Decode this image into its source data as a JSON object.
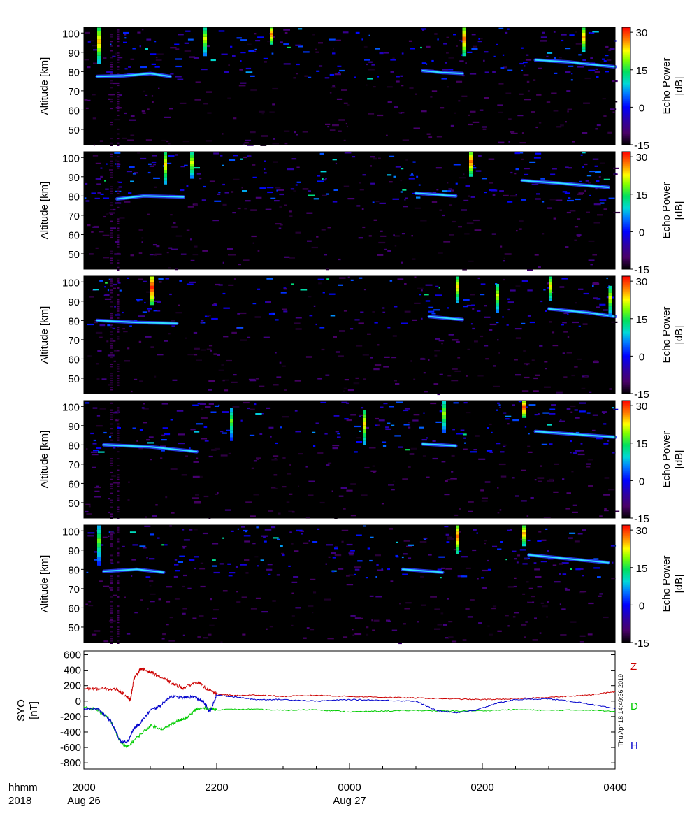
{
  "chart_data": {
    "type": "heatmap",
    "panels": [
      {
        "ylabel": "Altitude [km]",
        "cbar_label": "Echo Power",
        "cbar_unit": "[dB]"
      },
      {
        "ylabel": "Altitude [km]",
        "cbar_label": "Echo Power",
        "cbar_unit": "[dB]"
      },
      {
        "ylabel": "Altitude [km]",
        "cbar_label": "Echo Power",
        "cbar_unit": "[dB]"
      },
      {
        "ylabel": "Altitude [km]",
        "cbar_label": "Echo Power",
        "cbar_unit": "[dB]"
      },
      {
        "ylabel": "Altitude [km]",
        "cbar_label": "Echo Power",
        "cbar_unit": "[dB]"
      }
    ],
    "altitude_ticks": [
      50,
      60,
      70,
      80,
      90,
      100
    ],
    "altitude_range": [
      42,
      103
    ],
    "power_ticks": [
      -15,
      0,
      15,
      30
    ],
    "power_range": [
      -15,
      32
    ],
    "time_range_hours": [
      20,
      28
    ],
    "background": "#000000",
    "echo_layers": [
      {
        "panel": 0,
        "points": [
          [
            20.2,
            77.5
          ],
          [
            20.6,
            77.8
          ],
          [
            21.0,
            79.0
          ],
          [
            21.3,
            77.5
          ]
        ]
      },
      {
        "panel": 0,
        "points": [
          [
            25.1,
            80.5
          ],
          [
            25.4,
            79.5
          ],
          [
            25.7,
            79.0
          ]
        ]
      },
      {
        "panel": 0,
        "points": [
          [
            26.8,
            86.0
          ],
          [
            27.3,
            85.0
          ],
          [
            27.7,
            83.5
          ],
          [
            28.0,
            82.5
          ]
        ]
      },
      {
        "panel": 1,
        "points": [
          [
            20.5,
            78.5
          ],
          [
            20.9,
            80.0
          ],
          [
            21.5,
            79.5
          ]
        ]
      },
      {
        "panel": 1,
        "points": [
          [
            25.0,
            81.5
          ],
          [
            25.6,
            80.0
          ]
        ]
      },
      {
        "panel": 1,
        "points": [
          [
            26.6,
            88.0
          ],
          [
            27.2,
            86.5
          ],
          [
            27.9,
            84.5
          ]
        ]
      },
      {
        "panel": 2,
        "points": [
          [
            20.2,
            80.0
          ],
          [
            20.8,
            79.0
          ],
          [
            21.4,
            78.5
          ]
        ]
      },
      {
        "panel": 2,
        "points": [
          [
            25.2,
            82.0
          ],
          [
            25.7,
            80.5
          ]
        ]
      },
      {
        "panel": 2,
        "points": [
          [
            27.0,
            86.0
          ],
          [
            27.6,
            84.0
          ],
          [
            28.0,
            82.0
          ]
        ]
      },
      {
        "panel": 3,
        "points": [
          [
            20.3,
            80.0
          ],
          [
            21.0,
            79.0
          ],
          [
            21.7,
            76.5
          ]
        ]
      },
      {
        "panel": 3,
        "points": [
          [
            25.1,
            80.5
          ],
          [
            25.6,
            79.5
          ]
        ]
      },
      {
        "panel": 3,
        "points": [
          [
            26.8,
            87.0
          ],
          [
            27.4,
            85.5
          ],
          [
            28.0,
            84.0
          ]
        ]
      },
      {
        "panel": 4,
        "points": [
          [
            20.3,
            79.0
          ],
          [
            20.8,
            80.0
          ],
          [
            21.2,
            78.5
          ]
        ]
      },
      {
        "panel": 4,
        "points": [
          [
            24.8,
            80.0
          ],
          [
            25.4,
            78.5
          ]
        ]
      },
      {
        "panel": 4,
        "points": [
          [
            26.7,
            87.5
          ],
          [
            27.3,
            85.5
          ],
          [
            27.9,
            83.5
          ]
        ]
      }
    ],
    "echo_columns": [
      {
        "panel": 0,
        "t": 20.2,
        "alt": [
          84,
          103
        ],
        "peak_db": 25
      },
      {
        "panel": 0,
        "t": 21.8,
        "alt": [
          88,
          103
        ],
        "peak_db": 22
      },
      {
        "panel": 0,
        "t": 22.8,
        "alt": [
          94,
          103
        ],
        "peak_db": 28
      },
      {
        "panel": 0,
        "t": 25.7,
        "alt": [
          88,
          103
        ],
        "peak_db": 28
      },
      {
        "panel": 0,
        "t": 27.5,
        "alt": [
          90,
          103
        ],
        "peak_db": 26
      },
      {
        "panel": 1,
        "t": 21.2,
        "alt": [
          86,
          103
        ],
        "peak_db": 24
      },
      {
        "panel": 1,
        "t": 21.6,
        "alt": [
          89,
          103
        ],
        "peak_db": 22
      },
      {
        "panel": 1,
        "t": 25.8,
        "alt": [
          90,
          103
        ],
        "peak_db": 28
      },
      {
        "panel": 2,
        "t": 21.0,
        "alt": [
          88,
          103
        ],
        "peak_db": 31
      },
      {
        "panel": 2,
        "t": 25.6,
        "alt": [
          89,
          103
        ],
        "peak_db": 24
      },
      {
        "panel": 2,
        "t": 26.2,
        "alt": [
          84,
          99
        ],
        "peak_db": 22
      },
      {
        "panel": 2,
        "t": 27.0,
        "alt": [
          90,
          103
        ],
        "peak_db": 24
      },
      {
        "panel": 2,
        "t": 27.9,
        "alt": [
          82,
          98
        ],
        "peak_db": 22
      },
      {
        "panel": 3,
        "t": 22.2,
        "alt": [
          82,
          99
        ],
        "peak_db": 18
      },
      {
        "panel": 3,
        "t": 24.2,
        "alt": [
          80,
          98
        ],
        "peak_db": 24
      },
      {
        "panel": 3,
        "t": 25.4,
        "alt": [
          86,
          103
        ],
        "peak_db": 20
      },
      {
        "panel": 3,
        "t": 26.6,
        "alt": [
          94,
          103
        ],
        "peak_db": 30
      },
      {
        "panel": 4,
        "t": 20.2,
        "alt": [
          82,
          103
        ],
        "peak_db": 18
      },
      {
        "panel": 4,
        "t": 25.6,
        "alt": [
          88,
          103
        ],
        "peak_db": 28
      },
      {
        "panel": 4,
        "t": 26.6,
        "alt": [
          92,
          103
        ],
        "peak_db": 26
      }
    ],
    "magnetometer": {
      "ylabel": "SYO",
      "yunit": "[nT]",
      "yticks": [
        600,
        400,
        200,
        0,
        -200,
        -400,
        -600,
        -800
      ],
      "ylim": [
        -880,
        650
      ],
      "series": [
        {
          "name": "Z",
          "color": "#cc0000",
          "x": [
            20.0,
            20.25,
            20.5,
            20.65,
            20.7,
            20.75,
            20.85,
            21.0,
            21.2,
            21.35,
            21.5,
            21.7,
            21.85,
            22.0,
            22.3,
            22.6,
            23.0,
            23.5,
            24.0,
            24.5,
            25.0,
            25.5,
            26.0,
            26.5,
            27.0,
            27.5,
            27.8,
            28.0
          ],
          "values": [
            160,
            160,
            150,
            60,
            10,
            280,
            420,
            380,
            290,
            220,
            170,
            250,
            160,
            90,
            70,
            80,
            60,
            75,
            60,
            50,
            40,
            30,
            20,
            30,
            50,
            70,
            100,
            120
          ]
        },
        {
          "name": "D",
          "color": "#00cc00",
          "x": [
            20.0,
            20.2,
            20.4,
            20.55,
            20.65,
            20.8,
            21.0,
            21.2,
            21.4,
            21.55,
            21.7,
            21.85,
            22.0,
            22.5,
            23.0,
            23.5,
            24.0,
            24.5,
            25.0,
            25.5,
            26.0,
            26.5,
            27.0,
            27.5,
            28.0
          ],
          "values": [
            -80,
            -110,
            -250,
            -530,
            -600,
            -470,
            -320,
            -360,
            -260,
            -220,
            -100,
            -90,
            -110,
            -105,
            -120,
            -110,
            -140,
            -130,
            -120,
            -130,
            -125,
            -110,
            -120,
            -115,
            -130
          ]
        },
        {
          "name": "H",
          "color": "#0000cc",
          "x": [
            20.0,
            20.2,
            20.4,
            20.55,
            20.65,
            20.75,
            20.85,
            21.0,
            21.15,
            21.3,
            21.5,
            21.65,
            21.8,
            21.9,
            22.0,
            22.3,
            22.6,
            23.0,
            23.5,
            24.0,
            24.5,
            25.0,
            25.3,
            25.6,
            25.9,
            26.2,
            26.5,
            27.0,
            27.5,
            28.0
          ],
          "values": [
            -90,
            -100,
            -250,
            -520,
            -540,
            -360,
            -280,
            -120,
            -60,
            60,
            40,
            60,
            -10,
            -140,
            80,
            50,
            20,
            20,
            0,
            20,
            10,
            0,
            -120,
            -150,
            -120,
            -30,
            20,
            30,
            -20,
            -100
          ]
        }
      ]
    },
    "x_ticks": [
      {
        "t": 20,
        "label": "2000",
        "sublabel": "Aug 26"
      },
      {
        "t": 22,
        "label": "2200",
        "sublabel": ""
      },
      {
        "t": 24,
        "label": "0000",
        "sublabel": "Aug 27"
      },
      {
        "t": 26,
        "label": "0200",
        "sublabel": ""
      },
      {
        "t": 28,
        "label": "0400",
        "sublabel": ""
      }
    ],
    "x_axis_caption": {
      "line1": "hhmm",
      "line2": "2018"
    },
    "timestamp": "Thu Apr 18 14:49:36 2019"
  }
}
